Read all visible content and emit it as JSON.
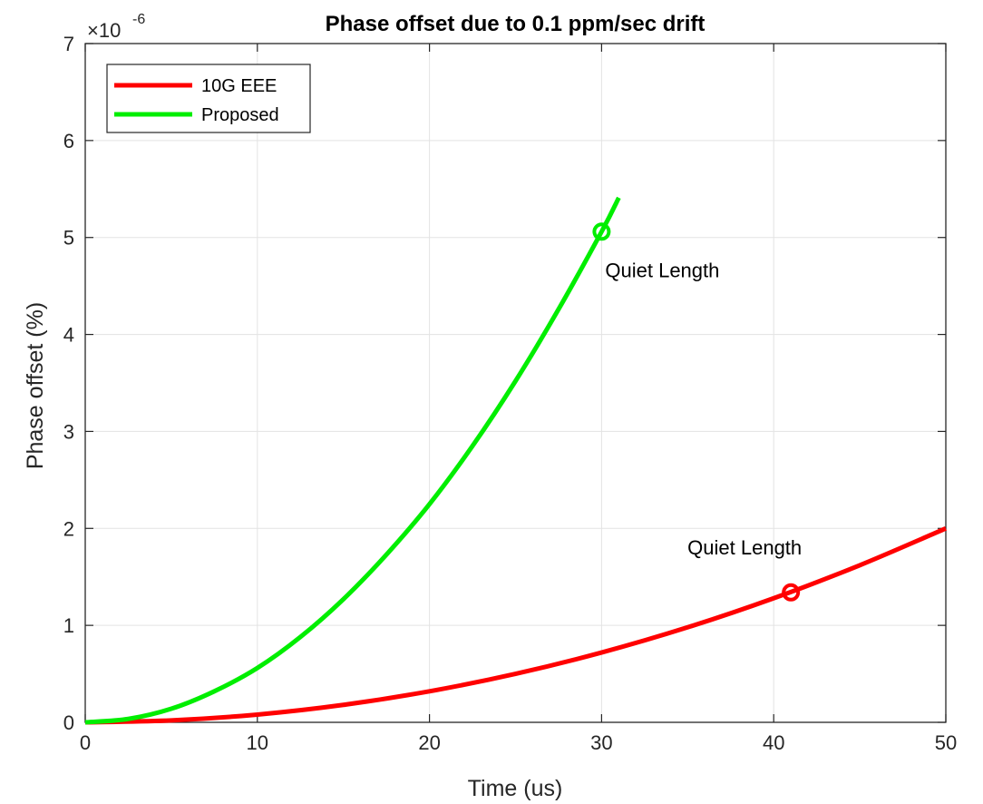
{
  "chart_data": {
    "type": "line",
    "title": "Phase offset due to 0.1 ppm/sec drift",
    "xlabel": "Time (us)",
    "ylabel": "Phase offset (%)",
    "xlim": [
      0,
      50
    ],
    "ylim": [
      0,
      7
    ],
    "y_exponent": {
      "base": "×10",
      "power": "-6"
    },
    "x_ticks": [
      0,
      10,
      20,
      30,
      40,
      50
    ],
    "y_ticks": [
      0,
      1,
      2,
      3,
      4,
      5,
      6,
      7
    ],
    "grid": true,
    "legend_position": "top-left",
    "series": [
      {
        "name": "10G EEE",
        "color": "#ff0000",
        "x": [
          0,
          5,
          10,
          15,
          20,
          25,
          30,
          35,
          40,
          45,
          50
        ],
        "y": [
          0,
          0.02,
          0.08,
          0.18,
          0.32,
          0.5,
          0.72,
          0.98,
          1.28,
          1.62,
          2.0
        ],
        "marker": {
          "x": 41,
          "y": 1.34,
          "label": "Quiet Length"
        }
      },
      {
        "name": "Proposed",
        "color": "#00ee00",
        "x": [
          0,
          2.5,
          5,
          7.5,
          10,
          12.5,
          15,
          17.5,
          20,
          22.5,
          25,
          27.5,
          30,
          31
        ],
        "y": [
          0,
          0.035,
          0.14,
          0.32,
          0.56,
          0.88,
          1.27,
          1.73,
          2.25,
          2.85,
          3.52,
          4.26,
          5.06,
          5.41
        ],
        "marker": {
          "x": 30,
          "y": 5.06,
          "label": "Quiet Length"
        }
      }
    ]
  }
}
